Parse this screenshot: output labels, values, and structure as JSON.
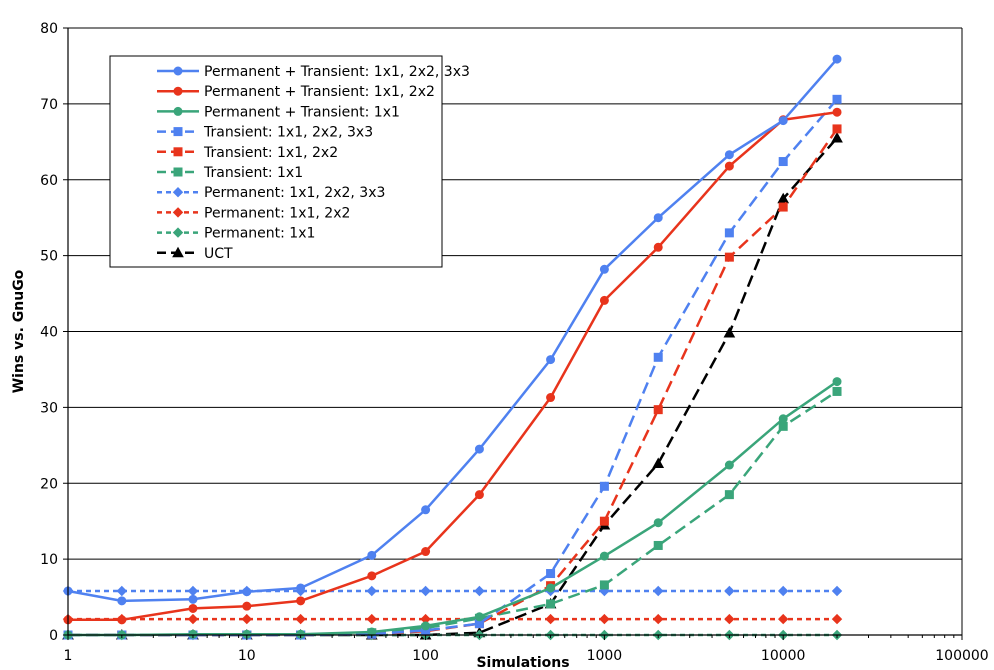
{
  "chart_data": {
    "type": "line",
    "title": "",
    "xlabel": "Simulations",
    "ylabel": "Wins vs. GnuGo",
    "x_scale": "log",
    "xlim": [
      1,
      100000
    ],
    "ylim": [
      0,
      80
    ],
    "x_ticks": [
      "1",
      "10",
      "100",
      "1000",
      "10000",
      "100000"
    ],
    "y_ticks": [
      "0",
      "10",
      "20",
      "30",
      "40",
      "50",
      "60",
      "70",
      "80"
    ],
    "grid": "horizontal",
    "legend_position": "top-left",
    "x": [
      1,
      2,
      5,
      10,
      20,
      50,
      100,
      200,
      500,
      1000,
      2000,
      5000,
      10000,
      20000
    ],
    "series": [
      {
        "name": "Permanent + Transient: 1x1, 2x2, 3x3",
        "color": "#4f81f0",
        "dash": "solid",
        "marker": "circle",
        "values": [
          5.8,
          4.5,
          4.7,
          5.7,
          6.2,
          10.5,
          16.5,
          24.5,
          36.3,
          48.2,
          55,
          63.3,
          67.8,
          75.9
        ]
      },
      {
        "name": "Permanent + Transient: 1x1, 2x2",
        "color": "#e8341c",
        "dash": "solid",
        "marker": "circle",
        "values": [
          2,
          2,
          3.5,
          3.8,
          4.5,
          7.8,
          11,
          18.5,
          31.3,
          44.1,
          51.1,
          61.8,
          67.9,
          68.9
        ]
      },
      {
        "name": "Permanent + Transient: 1x1",
        "color": "#3aa57a",
        "dash": "solid",
        "marker": "circle",
        "values": [
          0,
          0,
          0.1,
          0.1,
          0.1,
          0.4,
          1.2,
          2.4,
          6.2,
          10.4,
          14.8,
          22.4,
          28.5,
          33.4
        ]
      },
      {
        "name": "Transient: 1x1, 2x2, 3x3",
        "color": "#4f81f0",
        "dash": "longdash",
        "marker": "square",
        "values": [
          0,
          0,
          0,
          0,
          0,
          0.1,
          0.6,
          1.5,
          8.1,
          19.6,
          36.6,
          53,
          62.4,
          70.6
        ]
      },
      {
        "name": "Transient: 1x1, 2x2",
        "color": "#e8341c",
        "dash": "longdash",
        "marker": "square",
        "values": [
          0,
          0,
          0,
          0,
          0,
          0.1,
          0.5,
          1.5,
          6.5,
          15,
          29.7,
          49.8,
          56.4,
          66.7
        ]
      },
      {
        "name": "Transient: 1x1",
        "color": "#3aa57a",
        "dash": "longdash",
        "marker": "square",
        "values": [
          0,
          0,
          0,
          0,
          0,
          0.3,
          0.9,
          2.2,
          4.1,
          6.6,
          11.8,
          18.5,
          27.5,
          32.1
        ]
      },
      {
        "name": "Permanent: 1x1, 2x2, 3x3",
        "color": "#4f81f0",
        "dash": "shortdash",
        "marker": "diamond",
        "values": [
          5.8,
          5.8,
          5.8,
          5.8,
          5.8,
          5.8,
          5.8,
          5.8,
          5.8,
          5.8,
          5.8,
          5.8,
          5.8,
          5.8
        ]
      },
      {
        "name": "Permanent: 1x1, 2x2",
        "color": "#e8341c",
        "dash": "shortdash",
        "marker": "diamond",
        "values": [
          2.1,
          2.1,
          2.1,
          2.1,
          2.1,
          2.1,
          2.1,
          2.1,
          2.1,
          2.1,
          2.1,
          2.1,
          2.1,
          2.1
        ]
      },
      {
        "name": "Permanent: 1x1",
        "color": "#3aa57a",
        "dash": "shortdash",
        "marker": "diamond",
        "values": [
          0,
          0,
          0,
          0,
          0,
          0,
          0,
          0,
          0,
          0,
          0,
          0,
          0,
          0
        ]
      },
      {
        "name": "UCT",
        "color": "#000000",
        "dash": "longdash",
        "marker": "triangle",
        "values": [
          0,
          0,
          0,
          0,
          0,
          0,
          0,
          0.3,
          4.1,
          14.5,
          22.6,
          39.8,
          57.5,
          65.5
        ]
      }
    ]
  }
}
